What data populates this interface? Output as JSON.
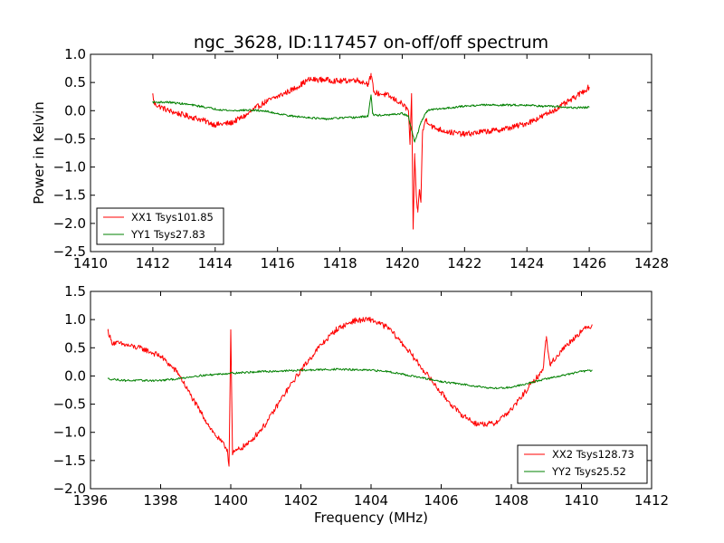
{
  "title": "ngc_3628, ID:117457 on-off/off spectrum",
  "colors": {
    "xx": "#ff0000",
    "yy": "#008000",
    "axes": "#000000",
    "background": "#ffffff"
  },
  "chart_data": [
    {
      "type": "line",
      "title": "ngc_3628, ID:117457 on-off/off spectrum",
      "xlabel": "",
      "ylabel": "Power in Kelvin",
      "xlim": [
        1410,
        1428
      ],
      "ylim": [
        -2.5,
        1.0
      ],
      "xticks": [
        1410,
        1412,
        1414,
        1416,
        1418,
        1420,
        1422,
        1424,
        1426,
        1428
      ],
      "yticks": [
        -2.5,
        -2.0,
        -1.5,
        -1.0,
        -0.5,
        0.0,
        0.5,
        1.0
      ],
      "xtick_labels": [
        "1410",
        "1412",
        "1414",
        "1416",
        "1418",
        "1420",
        "1422",
        "1424",
        "1426",
        "1428"
      ],
      "ytick_labels": [
        "−2.5",
        "−2.0",
        "−1.5",
        "−1.0",
        "−0.5",
        "0.0",
        "0.5",
        "1.0"
      ],
      "grid": false,
      "legend": "lower-left",
      "series": [
        {
          "name": "XX1 Tsys101.85",
          "color": "#ff0000",
          "x": [
            1412.0,
            1412.05,
            1412.2,
            1412.5,
            1413.0,
            1413.5,
            1414.0,
            1414.5,
            1415.0,
            1415.3,
            1415.6,
            1416.0,
            1416.5,
            1417.0,
            1417.5,
            1418.0,
            1418.5,
            1418.9,
            1419.0,
            1419.1,
            1419.5,
            1420.0,
            1420.2,
            1420.25,
            1420.3,
            1420.35,
            1420.4,
            1420.45,
            1420.5,
            1420.55,
            1420.6,
            1420.65,
            1420.75,
            1421.0,
            1421.5,
            1422.0,
            1422.5,
            1423.0,
            1423.5,
            1424.0,
            1424.5,
            1425.0,
            1425.5,
            1426.0
          ],
          "values": [
            0.28,
            0.12,
            0.08,
            0.0,
            -0.08,
            -0.15,
            -0.25,
            -0.22,
            -0.08,
            0.05,
            0.15,
            0.25,
            0.38,
            0.55,
            0.55,
            0.52,
            0.55,
            0.48,
            0.62,
            0.32,
            0.28,
            0.12,
            0.0,
            -0.6,
            0.28,
            -2.1,
            -0.8,
            -1.5,
            -1.8,
            -1.4,
            -1.6,
            -0.4,
            -0.15,
            -0.3,
            -0.38,
            -0.42,
            -0.38,
            -0.35,
            -0.3,
            -0.22,
            -0.1,
            0.05,
            0.22,
            0.42
          ]
        },
        {
          "name": "YY1 Tsys27.83",
          "color": "#008000",
          "x": [
            1412.0,
            1412.5,
            1413.0,
            1413.5,
            1414.0,
            1414.5,
            1415.0,
            1415.5,
            1416.0,
            1416.5,
            1417.0,
            1417.5,
            1418.0,
            1418.5,
            1418.9,
            1419.0,
            1419.05,
            1419.1,
            1419.5,
            1420.0,
            1420.2,
            1420.3,
            1420.4,
            1420.5,
            1420.6,
            1420.8,
            1421.0,
            1421.5,
            1422.0,
            1422.5,
            1423.0,
            1423.5,
            1424.0,
            1424.5,
            1425.0,
            1425.5,
            1426.0
          ],
          "values": [
            0.15,
            0.15,
            0.12,
            0.08,
            0.03,
            0.0,
            0.01,
            0.0,
            -0.05,
            -0.1,
            -0.12,
            -0.15,
            -0.13,
            -0.12,
            -0.1,
            0.28,
            -0.05,
            -0.08,
            -0.08,
            -0.05,
            -0.1,
            -0.35,
            -0.55,
            -0.4,
            -0.2,
            0.0,
            0.02,
            0.05,
            0.08,
            0.1,
            0.1,
            0.1,
            0.1,
            0.08,
            0.07,
            0.05,
            0.06
          ]
        }
      ]
    },
    {
      "type": "line",
      "title": "",
      "xlabel": "Frequency (MHz)",
      "ylabel": "",
      "xlim": [
        1396,
        1412
      ],
      "ylim": [
        -2.0,
        1.5
      ],
      "xticks": [
        1396,
        1398,
        1400,
        1402,
        1404,
        1406,
        1408,
        1410,
        1412
      ],
      "yticks": [
        -2.0,
        -1.5,
        -1.0,
        -0.5,
        0.0,
        0.5,
        1.0,
        1.5
      ],
      "xtick_labels": [
        "1396",
        "1398",
        "1400",
        "1402",
        "1404",
        "1406",
        "1408",
        "1410",
        "1412"
      ],
      "ytick_labels": [
        "−2.0",
        "−1.5",
        "−1.0",
        "−0.5",
        "0.0",
        "0.5",
        "1.0",
        "1.5"
      ],
      "grid": false,
      "legend": "lower-right",
      "series": [
        {
          "name": "XX2 Tsys128.73",
          "color": "#ff0000",
          "x": [
            1396.5,
            1396.6,
            1397.0,
            1397.5,
            1398.0,
            1398.5,
            1399.0,
            1399.5,
            1399.9,
            1399.95,
            1400.0,
            1400.05,
            1400.1,
            1400.5,
            1401.0,
            1401.5,
            1402.0,
            1402.5,
            1403.0,
            1403.5,
            1404.0,
            1404.5,
            1405.0,
            1405.5,
            1406.0,
            1406.5,
            1407.0,
            1407.5,
            1408.0,
            1408.5,
            1408.9,
            1409.0,
            1409.1,
            1409.5,
            1410.0,
            1410.3
          ],
          "values": [
            0.8,
            0.6,
            0.55,
            0.48,
            0.35,
            0.05,
            -0.5,
            -1.0,
            -1.3,
            -1.6,
            0.82,
            -1.4,
            -1.35,
            -1.2,
            -0.85,
            -0.35,
            0.1,
            0.5,
            0.82,
            0.98,
            1.0,
            0.85,
            0.5,
            0.1,
            -0.3,
            -0.65,
            -0.85,
            -0.85,
            -0.6,
            -0.2,
            0.1,
            0.7,
            0.2,
            0.5,
            0.8,
            0.9
          ]
        },
        {
          "name": "YY2 Tsys25.52",
          "color": "#008000",
          "x": [
            1396.5,
            1397.0,
            1398.0,
            1398.5,
            1399.0,
            1400.0,
            1401.0,
            1402.0,
            1403.0,
            1404.0,
            1404.5,
            1405.0,
            1406.0,
            1407.0,
            1407.5,
            1408.0,
            1409.0,
            1410.0,
            1410.3
          ],
          "values": [
            -0.05,
            -0.08,
            -0.08,
            -0.05,
            0.0,
            0.05,
            0.08,
            0.1,
            0.12,
            0.1,
            0.08,
            0.02,
            -0.1,
            -0.18,
            -0.22,
            -0.2,
            -0.05,
            0.08,
            0.1
          ]
        }
      ]
    }
  ]
}
